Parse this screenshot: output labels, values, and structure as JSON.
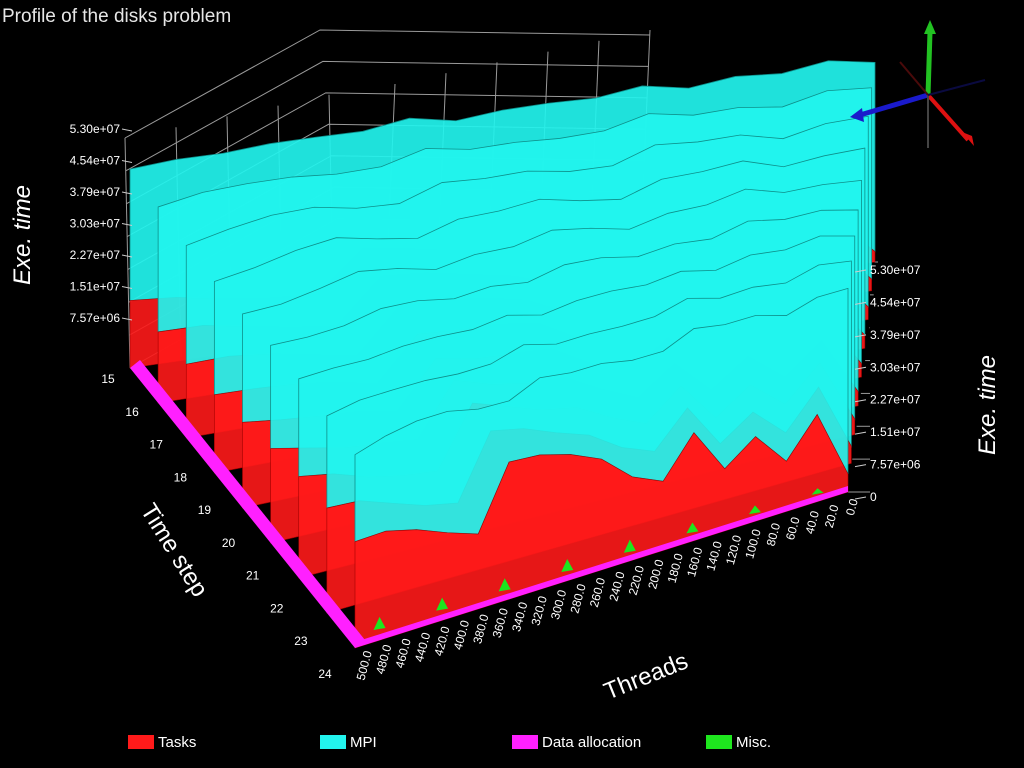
{
  "title": "Profile of the disks problem",
  "colors": {
    "tasks": "#ff1a1a",
    "mpi": "#22f4ee",
    "data_allocation": "#ff20ff",
    "misc": "#1ee61e"
  },
  "chart_data": {
    "type": "area",
    "title": "Profile of the disks problem",
    "xlabel": "Threads",
    "ylabel": "Time step",
    "zlabel": "Exe. time",
    "x_ticks": [
      "0.0",
      "20.0",
      "40.0",
      "60.0",
      "80.0",
      "100.0",
      "120.0",
      "140.0",
      "160.0",
      "180.0",
      "200.0",
      "220.0",
      "240.0",
      "260.0",
      "280.0",
      "300.0",
      "320.0",
      "340.0",
      "360.0",
      "380.0",
      "400.0",
      "420.0",
      "440.0",
      "460.0",
      "480.0",
      "500.0"
    ],
    "y_ticks": [
      "15",
      "16",
      "17",
      "18",
      "19",
      "20",
      "21",
      "22",
      "23",
      "24"
    ],
    "z_ticks_left": [
      "5.30e+07",
      "4.54e+07",
      "3.79e+07",
      "3.03e+07",
      "2.27e+07",
      "1.51e+07",
      "7.57e+06"
    ],
    "z_ticks_right": [
      "5.30e+07",
      "4.54e+07",
      "3.79e+07",
      "3.03e+07",
      "2.27e+07",
      "1.51e+07",
      "7.57e+06",
      "0"
    ],
    "zlim": [
      0,
      53000000
    ],
    "legend": [
      {
        "name": "Tasks",
        "color": "#ff1a1a"
      },
      {
        "name": "MPI",
        "color": "#22f4ee"
      },
      {
        "name": "Data allocation",
        "color": "#ff20ff"
      },
      {
        "name": "Misc.",
        "color": "#1ee61e"
      }
    ],
    "series": [
      {
        "name": "Tasks",
        "values": [
          4000000,
          20000000,
          12000000,
          20000000,
          14000000,
          24000000,
          16000000,
          20000000,
          26000000,
          28000000,
          30000000,
          32000000,
          18000000,
          20000000,
          22000000,
          24000000,
          25000000
        ]
      },
      {
        "name": "MPI",
        "values": [
          46000000,
          47000000,
          46000000,
          48000000,
          47000000,
          48000000,
          46000000,
          47000000,
          48000000,
          47000000,
          48000000,
          46000000,
          47000000,
          48000000,
          47000000,
          46000000,
          45000000
        ]
      },
      {
        "name": "Data allocation",
        "values": [
          600000,
          600000,
          700000,
          600000,
          700000,
          600000,
          700000,
          600000,
          700000,
          600000,
          700000,
          600000,
          700000,
          600000,
          700000,
          600000,
          600000
        ]
      },
      {
        "name": "Misc.",
        "values": [
          0,
          1500000,
          0,
          2000000,
          0,
          2500000,
          0,
          3000000,
          0,
          3000000,
          0,
          3000000,
          0,
          3000000,
          0,
          3000000,
          0
        ]
      }
    ]
  }
}
